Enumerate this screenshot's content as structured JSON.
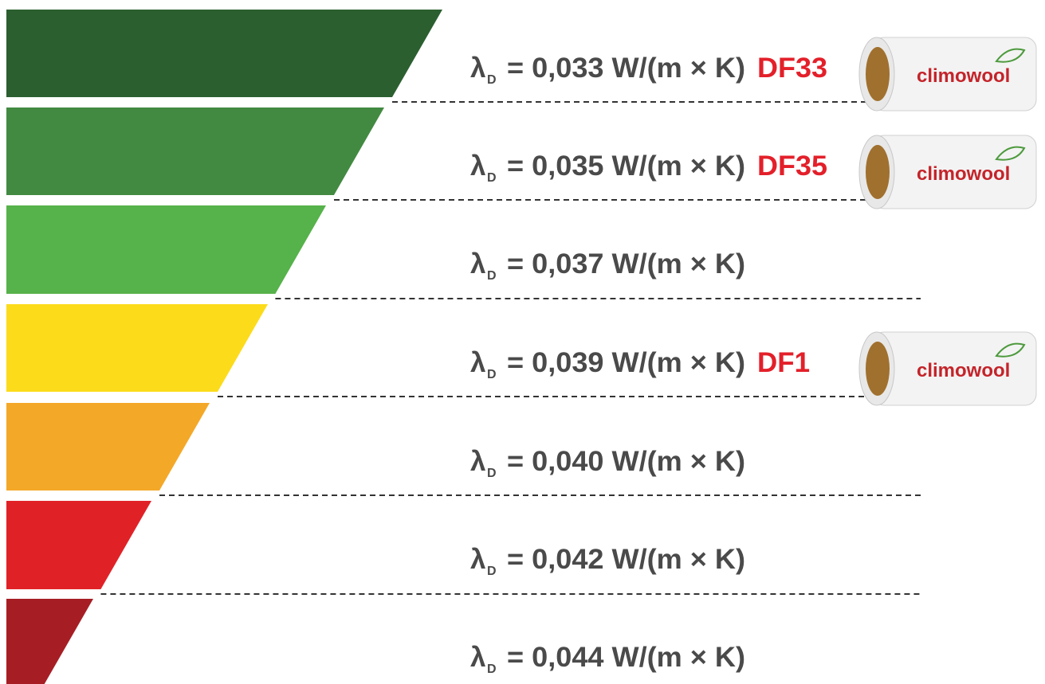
{
  "rows": [
    {
      "symbol": "λ",
      "subscript": "D",
      "text": "= 0,033 W/(m × K)",
      "color": "#2b5f30",
      "product": "DF33",
      "brand": "climowool"
    },
    {
      "symbol": "λ",
      "subscript": "D",
      "text": "= 0,035 W/(m × K)",
      "color": "#428a41",
      "product": "DF35",
      "brand": "climowool"
    },
    {
      "symbol": "λ",
      "subscript": "D",
      "text": "= 0,037 W/(m × K)",
      "color": "#56b24a"
    },
    {
      "symbol": "λ",
      "subscript": "D",
      "text": "= 0,039 W/(m × K)",
      "color": "#fcdb1b",
      "product": "DF1",
      "brand": "climowool"
    },
    {
      "symbol": "λ",
      "subscript": "D",
      "text": "= 0,040 W/(m × K)",
      "color": "#f4a828"
    },
    {
      "symbol": "λ",
      "subscript": "D",
      "text": "= 0,042 W/(m × K)",
      "color": "#e02227"
    },
    {
      "symbol": "λ",
      "subscript": "D",
      "text": "= 0,044 W/(m × K)",
      "color": "#a61e24"
    }
  ]
}
